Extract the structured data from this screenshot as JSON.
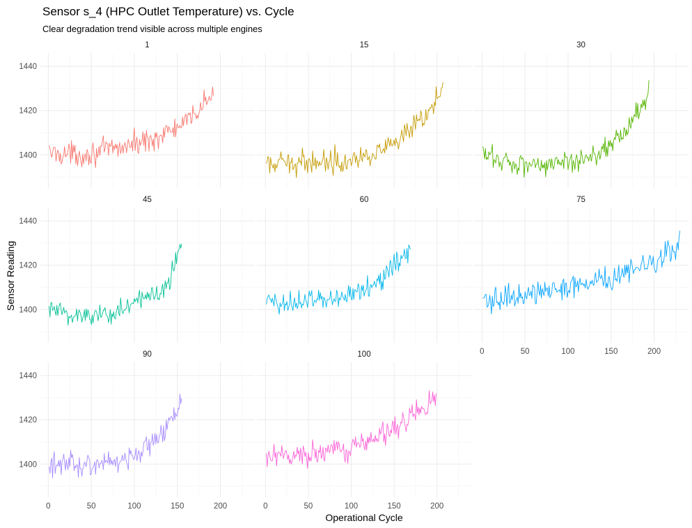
{
  "chart_data": {
    "type": "line",
    "title": "Sensor s_4 (HPC Outlet Temperature) vs. Cycle",
    "subtitle": "Clear degradation trend visible across multiple engines",
    "xlabel": "Operational Cycle",
    "ylabel": "Sensor Reading",
    "xlim": [
      -10,
      240
    ],
    "ylim": [
      1385,
      1446
    ],
    "x_ticks": [
      0,
      50,
      100,
      150,
      200
    ],
    "y_ticks": [
      1400,
      1420,
      1440
    ],
    "grid": true,
    "legend": "none",
    "facet_order": [
      "1",
      "15",
      "30",
      "45",
      "60",
      "75",
      "90",
      "100"
    ],
    "series": [
      {
        "name": "1",
        "color": "#F8766D",
        "max_cycle": 192,
        "trend": [
          [
            0,
            1401
          ],
          [
            40,
            1400
          ],
          [
            80,
            1403
          ],
          [
            120,
            1407
          ],
          [
            160,
            1414
          ],
          [
            192,
            1428
          ]
        ]
      },
      {
        "name": "15",
        "color": "#C49A00",
        "max_cycle": 207,
        "trend": [
          [
            0,
            1395
          ],
          [
            50,
            1397
          ],
          [
            100,
            1398
          ],
          [
            150,
            1404
          ],
          [
            190,
            1418
          ],
          [
            207,
            1432
          ]
        ]
      },
      {
        "name": "30",
        "color": "#53B400",
        "max_cycle": 194,
        "trend": [
          [
            0,
            1400
          ],
          [
            40,
            1396
          ],
          [
            100,
            1396
          ],
          [
            140,
            1402
          ],
          [
            170,
            1412
          ],
          [
            194,
            1428
          ]
        ]
      },
      {
        "name": "45",
        "color": "#00C094",
        "max_cycle": 155,
        "trend": [
          [
            0,
            1400
          ],
          [
            40,
            1397
          ],
          [
            80,
            1399
          ],
          [
            110,
            1404
          ],
          [
            140,
            1412
          ],
          [
            155,
            1432
          ]
        ]
      },
      {
        "name": "60",
        "color": "#00B6EB",
        "max_cycle": 169,
        "trend": [
          [
            0,
            1403
          ],
          [
            60,
            1404
          ],
          [
            100,
            1407
          ],
          [
            140,
            1415
          ],
          [
            169,
            1428
          ]
        ]
      },
      {
        "name": "75",
        "color": "#06A4FF",
        "max_cycle": 230,
        "trend": [
          [
            0,
            1403
          ],
          [
            50,
            1407
          ],
          [
            100,
            1410
          ],
          [
            150,
            1414
          ],
          [
            200,
            1421
          ],
          [
            230,
            1430
          ]
        ]
      },
      {
        "name": "90",
        "color": "#A58AFF",
        "max_cycle": 155,
        "trend": [
          [
            0,
            1399
          ],
          [
            50,
            1400
          ],
          [
            100,
            1404
          ],
          [
            130,
            1412
          ],
          [
            155,
            1428
          ]
        ]
      },
      {
        "name": "100",
        "color": "#FB61D7",
        "max_cycle": 199,
        "trend": [
          [
            0,
            1402
          ],
          [
            50,
            1404
          ],
          [
            100,
            1408
          ],
          [
            150,
            1416
          ],
          [
            199,
            1430
          ]
        ]
      }
    ]
  }
}
